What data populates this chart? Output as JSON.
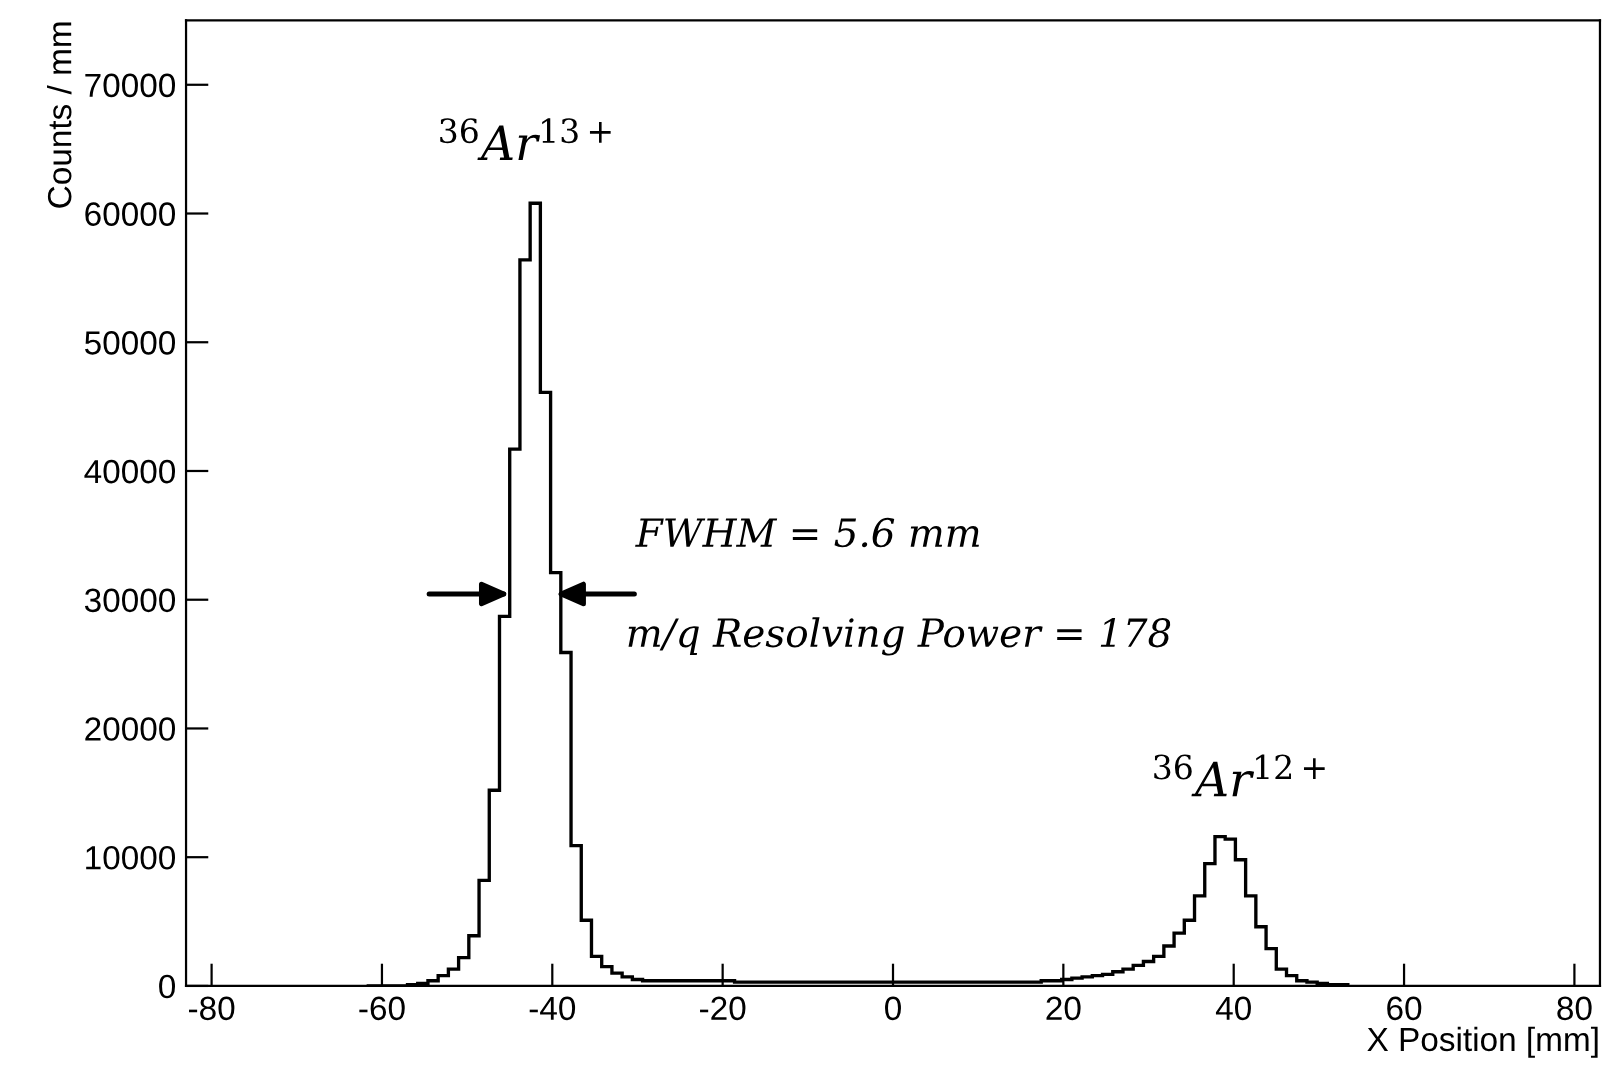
{
  "chart_data": {
    "type": "histogram",
    "xlabel": "X Position [mm]",
    "ylabel": "Counts / mm",
    "bins": [
      -61.8,
      -60.6,
      -59.4,
      -58.2,
      -57.0,
      -55.8,
      -54.6,
      -53.4,
      -52.2,
      -51.0,
      -49.8,
      -48.6,
      -47.4,
      -46.2,
      -45.0,
      -43.8,
      -42.6,
      -41.4,
      -40.2,
      -39.0,
      -37.8,
      -36.6,
      -35.4,
      -34.2,
      -33.0,
      -31.8,
      -30.6,
      -29.4,
      -28.2,
      -27.0,
      -25.8,
      -24.6,
      -23.4,
      -22.2,
      -21.0,
      -19.8,
      -18.6,
      -17.4,
      -16.2,
      -15.0,
      -13.8,
      -12.6,
      -11.4,
      -10.2,
      -9.0,
      -7.8,
      -6.6,
      -5.4,
      -4.2,
      -3.0,
      -1.8,
      -0.6,
      0.6,
      1.8,
      3.0,
      4.2,
      5.4,
      6.6,
      7.8,
      9.0,
      10.2,
      11.4,
      12.6,
      13.8,
      15.0,
      16.2,
      17.4,
      18.6,
      19.8,
      21.0,
      22.2,
      23.4,
      24.6,
      25.8,
      27.0,
      28.2,
      29.4,
      30.6,
      31.8,
      33.0,
      34.2,
      35.4,
      36.6,
      37.8,
      39.0,
      40.2,
      41.4,
      42.6,
      43.8,
      45.0,
      46.2,
      47.4,
      48.6,
      49.8,
      51.0,
      52.2,
      53.4
    ],
    "values": [
      0,
      0,
      0,
      0,
      100,
      200,
      400,
      800,
      1300,
      2200,
      3900,
      8200,
      15200,
      28700,
      41700,
      56400,
      60800,
      46100,
      32100,
      25900,
      10900,
      5100,
      2300,
      1500,
      1000,
      700,
      500,
      400,
      400,
      400,
      400,
      400,
      400,
      400,
      400,
      400,
      300,
      300,
      300,
      300,
      300,
      300,
      300,
      300,
      300,
      300,
      300,
      300,
      300,
      300,
      300,
      300,
      300,
      300,
      300,
      300,
      300,
      300,
      300,
      300,
      300,
      300,
      300,
      300,
      300,
      300,
      400,
      400,
      500,
      600,
      700,
      800,
      900,
      1100,
      1300,
      1600,
      1900,
      2300,
      3100,
      4100,
      5100,
      7000,
      9500,
      11600,
      11400,
      9800,
      7000,
      4600,
      2900,
      1300,
      800,
      400,
      300,
      200,
      100,
      100
    ],
    "color": "#000000",
    "xlim": [
      -83,
      83
    ],
    "xticks": [
      -80,
      -60,
      -40,
      -20,
      0,
      20,
      40,
      60,
      80
    ],
    "ylim": [
      0,
      75000
    ],
    "yticks": [
      0,
      10000,
      20000,
      30000,
      40000,
      50000,
      60000,
      70000
    ],
    "grid": false,
    "legend": false,
    "annotations": [
      "$^{36}$Ar$^{13+}$",
      "$^{36}$Ar$^{12+}$",
      "FWHM = 5.6 mm",
      "m/q Resolving Power = 178"
    ]
  }
}
